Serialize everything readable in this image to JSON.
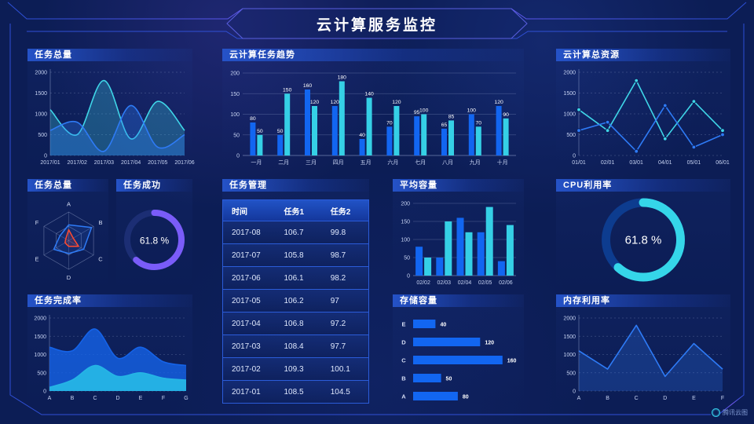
{
  "header": {
    "title": "云计算服务监控",
    "watermark": "腾讯云图"
  },
  "colors": {
    "background": "#0c1d55",
    "frame_line": "#3050d6",
    "frame_accent": "#7a5cf8",
    "blue_series": "#2e7bf6",
    "bar_blue": "#1266f1",
    "cyan_series": "#35d0e6",
    "radar_red": "#ff4a2f",
    "gauge_purple": "#7a5cf8",
    "gauge_cyan": "#35d6e9"
  },
  "chart_data": [
    {
      "id": "task-total-area",
      "type": "area",
      "title": "任务总量",
      "x": [
        "2017/01",
        "2017/02",
        "2017/03",
        "2017/04",
        "2017/05",
        "2017/06"
      ],
      "series": [
        {
          "name": "series-1",
          "color": "#3fd6e8",
          "fill": 0.28,
          "values": [
            1100,
            500,
            1800,
            400,
            1300,
            600
          ]
        },
        {
          "name": "series-2",
          "color": "#2e7bf6",
          "fill": 0.32,
          "values": [
            600,
            800,
            100,
            1200,
            200,
            500
          ]
        }
      ],
      "ylim": [
        0,
        2000
      ],
      "yticks": [
        0,
        500,
        1000,
        1500,
        2000
      ],
      "smooth": true,
      "markers": false,
      "grid": "dashed"
    },
    {
      "id": "cloud-task-trend",
      "type": "bar",
      "title": "云计算任务趋势",
      "categories": [
        "一月",
        "二月",
        "三月",
        "四月",
        "五月",
        "六月",
        "七月",
        "八月",
        "九月",
        "十月"
      ],
      "series": [
        {
          "name": "series-1",
          "color": "#1266f1",
          "values": [
            80,
            50,
            160,
            120,
            40,
            70,
            95,
            65,
            100,
            120
          ]
        },
        {
          "name": "series-2",
          "color": "#35d0e6",
          "values": [
            50,
            150,
            120,
            180,
            140,
            120,
            100,
            85,
            70,
            90
          ]
        }
      ],
      "ylim": [
        0,
        200
      ],
      "yticks": [
        0,
        50,
        100,
        150,
        200
      ],
      "value_labels": true
    },
    {
      "id": "cloud-total-resources",
      "type": "line",
      "title": "云计算总资源",
      "x": [
        "01/01",
        "02/01",
        "03/01",
        "04/01",
        "05/01",
        "06/01"
      ],
      "series": [
        {
          "name": "series-1",
          "color": "#3fd6e8",
          "fill": 0,
          "values": [
            1100,
            600,
            1800,
            400,
            1300,
            600
          ]
        },
        {
          "name": "series-2",
          "color": "#2e7bf6",
          "fill": 0,
          "values": [
            600,
            800,
            100,
            1200,
            200,
            500
          ]
        }
      ],
      "ylim": [
        0,
        2000
      ],
      "yticks": [
        0,
        500,
        1000,
        1500,
        2000
      ],
      "smooth": false,
      "markers": true,
      "grid": "dashed"
    },
    {
      "id": "task-total-radar",
      "type": "radar",
      "title": "任务总量",
      "axes": [
        "A",
        "B",
        "C",
        "D",
        "E",
        "F"
      ],
      "max": 100,
      "series": [
        {
          "name": "series-blue",
          "color": "#2e7bf6",
          "values": [
            55,
            92,
            60,
            45,
            60,
            35
          ]
        },
        {
          "name": "series-red",
          "color": "#ff4a2f",
          "values": [
            38,
            18,
            40,
            20,
            15,
            12
          ]
        }
      ]
    },
    {
      "id": "task-success-gauge",
      "type": "donut",
      "title": "任务成功",
      "value": 61.8,
      "label": "61.8 %",
      "color": "#7a5cf8",
      "track": "#1c2e74"
    },
    {
      "id": "task-table",
      "type": "table",
      "title": "任务管理",
      "columns": [
        "时间",
        "任务1",
        "任务2"
      ],
      "rows": [
        [
          "2017-08",
          "106.7",
          "99.8"
        ],
        [
          "2017-07",
          "105.8",
          "98.7"
        ],
        [
          "2017-06",
          "106.1",
          "98.2"
        ],
        [
          "2017-05",
          "106.2",
          "97"
        ],
        [
          "2017-04",
          "106.8",
          "97.2"
        ],
        [
          "2017-03",
          "108.4",
          "97.7"
        ],
        [
          "2017-02",
          "109.3",
          "100.1"
        ],
        [
          "2017-01",
          "108.5",
          "104.5"
        ]
      ]
    },
    {
      "id": "avg-capacity",
      "type": "bar",
      "title": "平均容量",
      "categories": [
        "02/02",
        "02/03",
        "02/04",
        "02/05",
        "02/06"
      ],
      "series": [
        {
          "name": "series-1",
          "color": "#1266f1",
          "values": [
            80,
            50,
            160,
            120,
            40
          ]
        },
        {
          "name": "series-2",
          "color": "#35d0e6",
          "values": [
            50,
            150,
            120,
            190,
            140
          ]
        }
      ],
      "ylim": [
        0,
        200
      ],
      "yticks": [
        0,
        50,
        100,
        150,
        200
      ],
      "value_labels": false
    },
    {
      "id": "cpu-utilization-gauge",
      "type": "donut",
      "title": "CPU利用率",
      "value": 61.8,
      "label": "61.8 %",
      "color": "#35d6e9",
      "track": "#0d3c8f"
    },
    {
      "id": "task-completion",
      "type": "area",
      "title": "任务完成率",
      "x": [
        "A",
        "B",
        "C",
        "D",
        "E",
        "F",
        "G"
      ],
      "series": [
        {
          "name": "series-1",
          "color": "#1563e8",
          "fill": 0.8,
          "values": [
            1200,
            1100,
            1700,
            900,
            1200,
            800,
            700
          ]
        },
        {
          "name": "series-2",
          "color": "#25b5e5",
          "fill": 0.95,
          "values": [
            100,
            300,
            700,
            400,
            500,
            350,
            300
          ]
        }
      ],
      "ylim": [
        0,
        2000
      ],
      "yticks": [
        0,
        500,
        1000,
        1500,
        2000
      ],
      "smooth": true,
      "markers": false,
      "grid": "dashed"
    },
    {
      "id": "storage-capacity",
      "type": "hbar",
      "title": "存储容量",
      "categories": [
        "E",
        "D",
        "C",
        "B",
        "A"
      ],
      "values": [
        40,
        120,
        160,
        50,
        80
      ],
      "xmax": 180,
      "color": "#1266f1"
    },
    {
      "id": "memory-utilization",
      "type": "line",
      "title": "内存利用率",
      "x": [
        "A",
        "B",
        "C",
        "D",
        "E",
        "F"
      ],
      "series": [
        {
          "name": "series-1",
          "color": "#2e7bf6",
          "fill": 0.25,
          "values": [
            1100,
            600,
            1800,
            400,
            1300,
            600
          ]
        }
      ],
      "ylim": [
        0,
        2000
      ],
      "yticks": [
        0,
        500,
        1000,
        1500,
        2000
      ],
      "smooth": false,
      "markers": false,
      "grid": "dashed"
    }
  ]
}
